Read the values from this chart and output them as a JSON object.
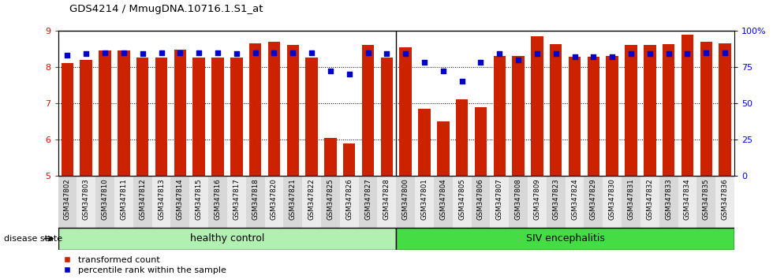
{
  "title": "GDS4214 / MmugDNA.10716.1.S1_at",
  "samples": [
    "GSM347802",
    "GSM347803",
    "GSM347810",
    "GSM347811",
    "GSM347812",
    "GSM347813",
    "GSM347814",
    "GSM347815",
    "GSM347816",
    "GSM347817",
    "GSM347818",
    "GSM347820",
    "GSM347821",
    "GSM347822",
    "GSM347825",
    "GSM347826",
    "GSM347827",
    "GSM347828",
    "GSM347800",
    "GSM347801",
    "GSM347804",
    "GSM347805",
    "GSM347806",
    "GSM347807",
    "GSM347808",
    "GSM347809",
    "GSM347823",
    "GSM347824",
    "GSM347829",
    "GSM347830",
    "GSM347831",
    "GSM347832",
    "GSM347833",
    "GSM347834",
    "GSM347835",
    "GSM347836"
  ],
  "red_values": [
    8.1,
    8.2,
    8.45,
    8.45,
    8.25,
    8.25,
    8.47,
    8.27,
    8.25,
    8.25,
    8.65,
    8.7,
    8.6,
    8.25,
    6.05,
    5.9,
    8.6,
    8.25,
    8.55,
    6.85,
    6.5,
    7.1,
    6.9,
    8.3,
    8.3,
    8.85,
    8.62,
    8.28,
    8.28,
    8.3,
    8.6,
    8.6,
    8.62,
    8.9,
    8.7,
    8.65
  ],
  "blue_values": [
    83,
    84,
    85,
    85,
    84,
    85,
    85,
    85,
    85,
    84,
    85,
    85,
    85,
    85,
    72,
    70,
    85,
    84,
    84,
    78,
    72,
    65,
    78,
    84,
    80,
    84,
    84,
    82,
    82,
    82,
    84,
    84,
    84,
    84,
    85,
    85
  ],
  "healthy_count": 18,
  "group_labels": [
    "healthy control",
    "SIV encephalitis"
  ],
  "healthy_color": "#b2f0b2",
  "siv_color": "#44dd44",
  "bar_color": "#CC2200",
  "dot_color": "#0000CC",
  "ylim_left": [
    5,
    9
  ],
  "ylim_right": [
    0,
    100
  ],
  "yticks_left": [
    5,
    6,
    7,
    8,
    9
  ],
  "yticks_right": [
    0,
    25,
    50,
    75,
    100
  ],
  "right_tick_labels": [
    "0",
    "25",
    "50",
    "75",
    "100%"
  ],
  "legend_labels": [
    "transformed count",
    "percentile rank within the sample"
  ],
  "disease_state_label": "disease state"
}
